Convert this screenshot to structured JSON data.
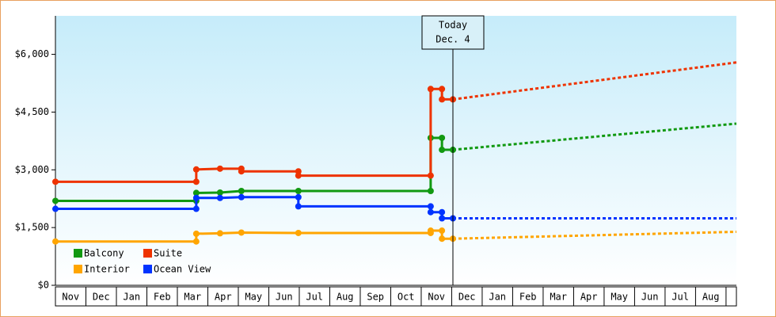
{
  "chart_data": {
    "type": "line",
    "xlim": [
      0,
      22.34
    ],
    "ylim": [
      0,
      7000
    ],
    "yticks": [
      {
        "value": 0,
        "label": "$0"
      },
      {
        "value": 1500,
        "label": "$1,500"
      },
      {
        "value": 3000,
        "label": "$3,000"
      },
      {
        "value": 4500,
        "label": "$4,500"
      },
      {
        "value": 6000,
        "label": "$6,000"
      }
    ],
    "xticks": [
      {
        "value": 0.5,
        "label": "Nov"
      },
      {
        "value": 1.5,
        "label": "Dec"
      },
      {
        "value": 2.5,
        "label": "Jan"
      },
      {
        "value": 3.5,
        "label": "Feb"
      },
      {
        "value": 4.5,
        "label": "Mar"
      },
      {
        "value": 5.5,
        "label": "Apr"
      },
      {
        "value": 6.5,
        "label": "May"
      },
      {
        "value": 7.5,
        "label": "Jun"
      },
      {
        "value": 8.5,
        "label": "Jul"
      },
      {
        "value": 9.5,
        "label": "Aug"
      },
      {
        "value": 10.5,
        "label": "Sep"
      },
      {
        "value": 11.5,
        "label": "Oct"
      },
      {
        "value": 12.5,
        "label": "Nov"
      },
      {
        "value": 13.5,
        "label": "Dec"
      },
      {
        "value": 14.5,
        "label": "Jan"
      },
      {
        "value": 15.5,
        "label": "Feb"
      },
      {
        "value": 16.5,
        "label": "Mar"
      },
      {
        "value": 17.5,
        "label": "Apr"
      },
      {
        "value": 18.5,
        "label": "May"
      },
      {
        "value": 19.5,
        "label": "Jun"
      },
      {
        "value": 20.5,
        "label": "Jul"
      },
      {
        "value": 21.5,
        "label": "Aug"
      }
    ],
    "today": {
      "x": 13.04,
      "label": "Today",
      "date": "Dec. 4"
    },
    "series": [
      {
        "name": "Balcony",
        "color": "#119911",
        "x": [
          0,
          4.62,
          4.62,
          5.4,
          6.1,
          7.97,
          12.31,
          12.31,
          12.68,
          12.68,
          13.04
        ],
        "values": [
          2193,
          2193,
          2400,
          2410,
          2450,
          2450,
          2450,
          3830,
          3830,
          3520,
          3520
        ],
        "forecast": {
          "x": [
            13.04,
            22.34
          ],
          "values": [
            3520,
            4200
          ]
        }
      },
      {
        "name": "Suite",
        "color": "#ee3300",
        "x": [
          0,
          4.62,
          4.62,
          5.4,
          6.1,
          6.1,
          7.97,
          7.97,
          12.31,
          12.31,
          12.68,
          12.68,
          13.04
        ],
        "values": [
          2690,
          2690,
          3010,
          3030,
          3030,
          2960,
          2960,
          2850,
          2850,
          5100,
          5100,
          4830,
          4830
        ],
        "forecast": {
          "x": [
            13.04,
            22.34
          ],
          "values": [
            4830,
            5790
          ]
        }
      },
      {
        "name": "Interior",
        "color": "#ffa500",
        "x": [
          0,
          4.62,
          4.62,
          5.4,
          6.1,
          7.97,
          12.31,
          12.31,
          12.68,
          12.68,
          13.04
        ],
        "values": [
          1138,
          1138,
          1340,
          1350,
          1370,
          1360,
          1360,
          1420,
          1420,
          1210,
          1210
        ],
        "forecast": {
          "x": [
            13.04,
            22.34
          ],
          "values": [
            1210,
            1390
          ]
        }
      },
      {
        "name": "Ocean View",
        "color": "#0033ff",
        "x": [
          0,
          4.62,
          4.62,
          5.4,
          6.1,
          7.97,
          7.97,
          12.31,
          12.31,
          12.68,
          12.68,
          13.04
        ],
        "values": [
          1986,
          1986,
          2270,
          2270,
          2290,
          2290,
          2050,
          2050,
          1900,
          1900,
          1740,
          1740
        ],
        "forecast": {
          "x": [
            13.04,
            22.34
          ],
          "values": [
            1740,
            1740
          ]
        }
      }
    ]
  }
}
